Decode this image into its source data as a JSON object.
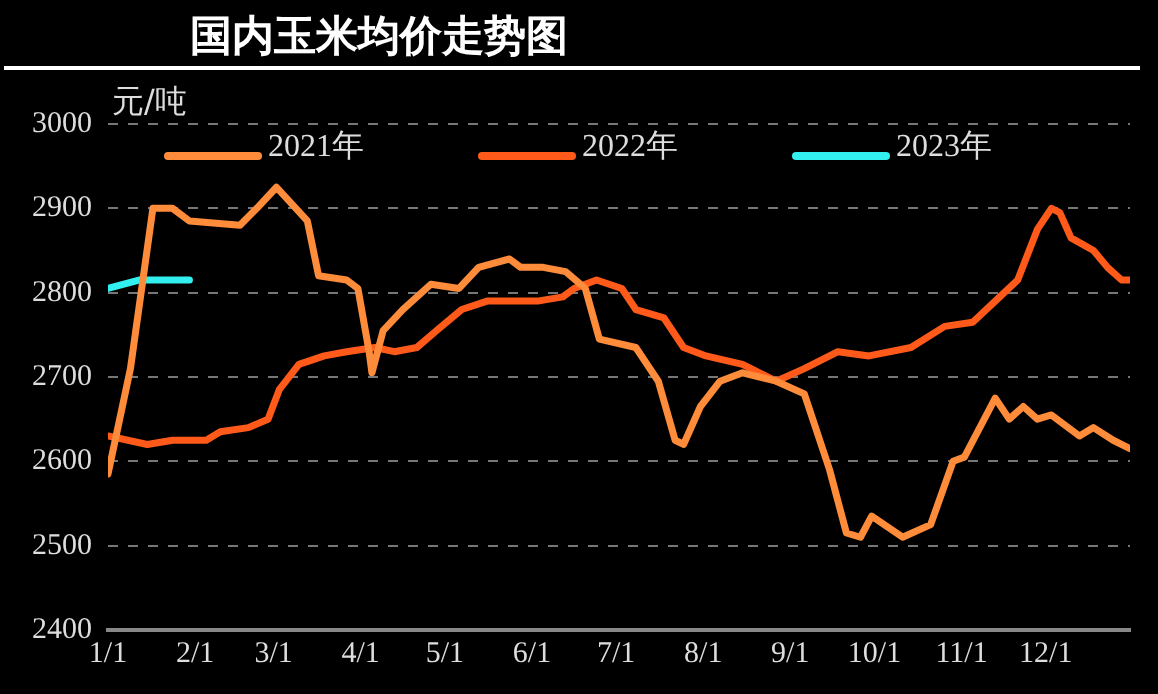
{
  "chart_data": {
    "type": "line",
    "title": "国内玉米均价走势图",
    "ylabel": "元/吨",
    "xlim": [
      "--01-01",
      "--12-31"
    ],
    "xticks": [
      {
        "value": "--01-01",
        "label": "1/1"
      },
      {
        "value": "--02-01",
        "label": "2/1"
      },
      {
        "value": "--03-01",
        "label": "3/1"
      },
      {
        "value": "--04-01",
        "label": "4/1"
      },
      {
        "value": "--05-01",
        "label": "5/1"
      },
      {
        "value": "--06-01",
        "label": "6/1"
      },
      {
        "value": "--07-01",
        "label": "7/1"
      },
      {
        "value": "--08-01",
        "label": "8/1"
      },
      {
        "value": "--09-01",
        "label": "9/1"
      },
      {
        "value": "--10-01",
        "label": "10/1"
      },
      {
        "value": "--11-01",
        "label": "11/1"
      },
      {
        "value": "--12-01",
        "label": "12/1"
      }
    ],
    "ylim": [
      2400,
      3000
    ],
    "yticks": [
      2400,
      2500,
      2600,
      2700,
      2800,
      2900,
      3000
    ],
    "grid": "y",
    "legend": "top",
    "marker": "none",
    "line_style": "solid",
    "series": [
      {
        "name": "2021年",
        "color": "#ff8c3a",
        "x": [
          "--01-01",
          "--01-09",
          "--01-17",
          "--01-24",
          "--01-30",
          "--02-17",
          "--02-23",
          "--03-02",
          "--03-13",
          "--03-17",
          "--03-27",
          "--03-31",
          "--04-04",
          "--04-05",
          "--04-09",
          "--04-16",
          "--04-26",
          "--05-06",
          "--05-13",
          "--05-24",
          "--05-28",
          "--06-05",
          "--06-13",
          "--06-20",
          "--06-25",
          "--07-08",
          "--07-16",
          "--07-22",
          "--07-25",
          "--07-31",
          "--08-07",
          "--08-15",
          "--08-27",
          "--09-06",
          "--09-15",
          "--09-21",
          "--09-26",
          "--09-30",
          "--10-11",
          "--10-21",
          "--10-29",
          "--11-02",
          "--11-13",
          "--11-18",
          "--11-23",
          "--11-28",
          "--12-03",
          "--12-13",
          "--12-18",
          "--12-25",
          "--12-31"
        ],
        "values": [
          2585,
          2710,
          2900,
          2900,
          2885,
          2880,
          2900,
          2925,
          2885,
          2820,
          2815,
          2805,
          2730,
          2705,
          2755,
          2780,
          2810,
          2805,
          2830,
          2840,
          2830,
          2830,
          2825,
          2805,
          2745,
          2735,
          2695,
          2625,
          2620,
          2665,
          2695,
          2705,
          2695,
          2680,
          2590,
          2515,
          2510,
          2535,
          2510,
          2525,
          2600,
          2605,
          2675,
          2650,
          2665,
          2650,
          2655,
          2630,
          2640,
          2625,
          2615
        ]
      },
      {
        "name": "2022年",
        "color": "#ff5a1a",
        "x": [
          "--01-01",
          "--01-15",
          "--01-24",
          "--02-05",
          "--02-10",
          "--02-20",
          "--02-27",
          "--03-03",
          "--03-10",
          "--03-19",
          "--03-27",
          "--04-06",
          "--04-13",
          "--04-21",
          "--04-28",
          "--05-07",
          "--05-16",
          "--06-03",
          "--06-12",
          "--06-16",
          "--06-24",
          "--07-03",
          "--07-08",
          "--07-18",
          "--07-25",
          "--08-02",
          "--08-15",
          "--08-27",
          "--09-06",
          "--09-18",
          "--09-29",
          "--10-14",
          "--10-26",
          "--11-05",
          "--11-13",
          "--11-21",
          "--11-28",
          "--12-03",
          "--12-06",
          "--12-10",
          "--12-18",
          "--12-23",
          "--12-28",
          "--12-31"
        ],
        "values": [
          2630,
          2620,
          2625,
          2625,
          2635,
          2640,
          2650,
          2685,
          2715,
          2725,
          2730,
          2735,
          2730,
          2735,
          2755,
          2780,
          2790,
          2790,
          2795,
          2805,
          2815,
          2805,
          2780,
          2770,
          2735,
          2725,
          2715,
          2695,
          2710,
          2730,
          2725,
          2735,
          2760,
          2765,
          2790,
          2815,
          2875,
          2900,
          2895,
          2865,
          2850,
          2830,
          2815,
          2815
        ]
      },
      {
        "name": "2023年",
        "color": "#33f0f0",
        "x": [
          "--01-01",
          "--01-12",
          "--01-18",
          "--01-30"
        ],
        "values": [
          2805,
          2815,
          2815,
          2815
        ]
      }
    ]
  }
}
